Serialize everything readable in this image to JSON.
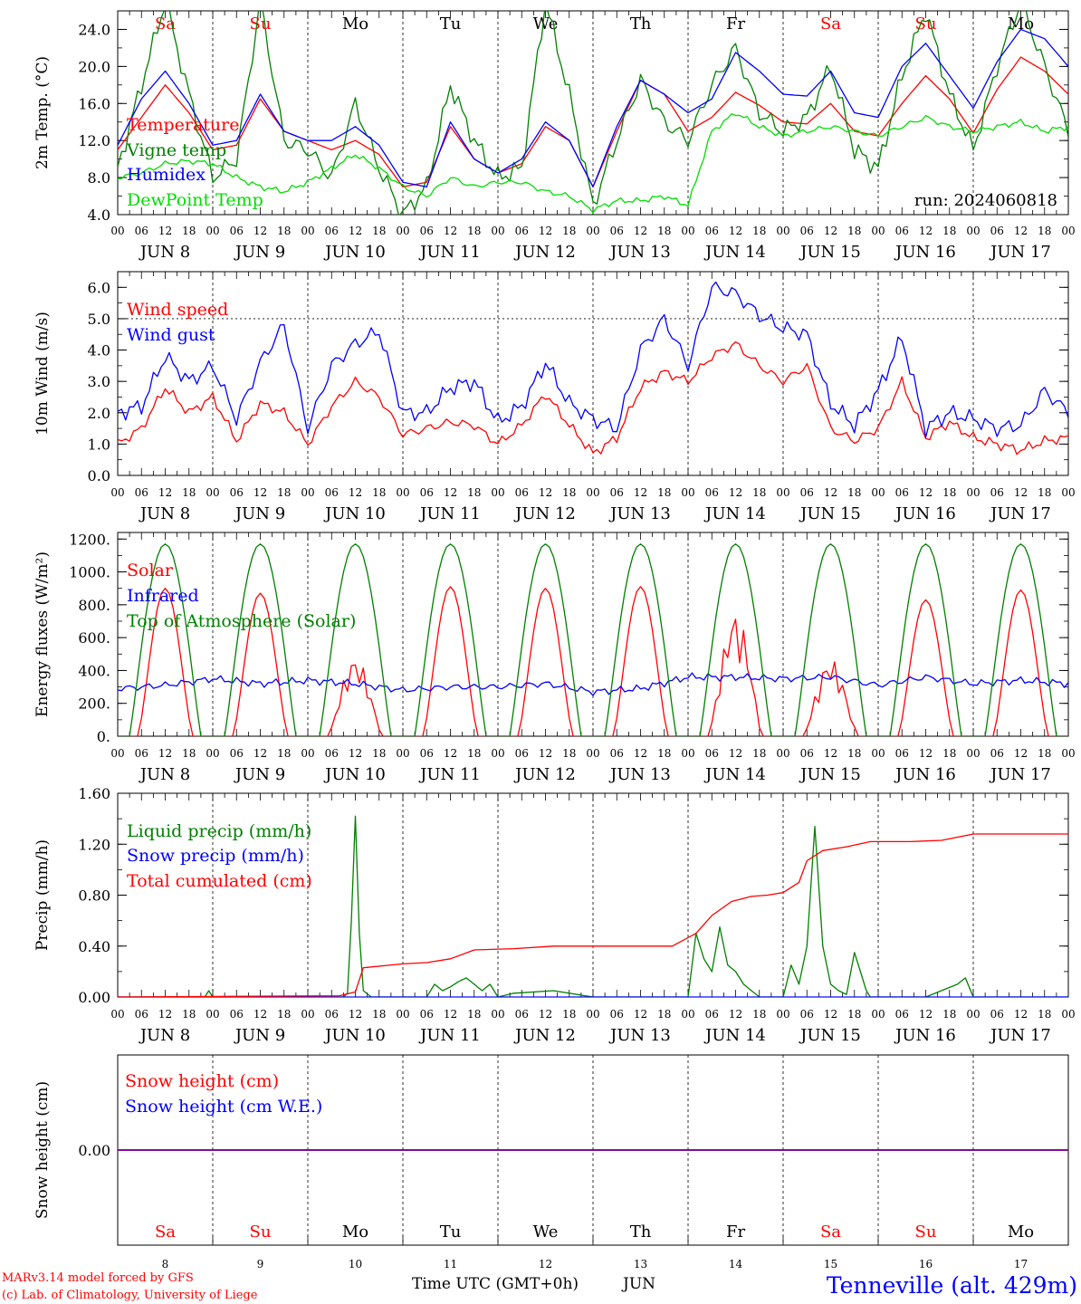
{
  "x_axis": {
    "hour_labels": [
      "00",
      "06",
      "12",
      "18"
    ],
    "final_hour_label": "00",
    "days": [
      {
        "date": "JUN  8",
        "weekday": "Sa",
        "weekend": true,
        "day_number": "8"
      },
      {
        "date": "JUN  9",
        "weekday": "Su",
        "weekend": true,
        "day_number": "9"
      },
      {
        "date": "JUN 10",
        "weekday": "Mo",
        "weekend": false,
        "day_number": "10"
      },
      {
        "date": "JUN 11",
        "weekday": "Tu",
        "weekend": false,
        "day_number": "11"
      },
      {
        "date": "JUN 12",
        "weekday": "We",
        "weekend": false,
        "day_number": "12"
      },
      {
        "date": "JUN 13",
        "weekday": "Th",
        "weekend": false,
        "day_number": "13"
      },
      {
        "date": "JUN 14",
        "weekday": "Fr",
        "weekend": false,
        "day_number": "14"
      },
      {
        "date": "JUN 15",
        "weekday": "Sa",
        "weekend": true,
        "day_number": "15"
      },
      {
        "date": "JUN 16",
        "weekday": "Su",
        "weekend": true,
        "day_number": "16"
      },
      {
        "date": "JUN 17",
        "weekday": "Mo",
        "weekend": false,
        "day_number": "17"
      }
    ],
    "title": "Time UTC (GMT+0h)",
    "month": "JUN"
  },
  "footer": {
    "credit_line1": "MARv3.14 model forced by GFS",
    "credit_line2": "(c) Lab. of Climatology, University of Liege",
    "station": "Tenneville (alt. 429m)"
  },
  "colors": {
    "red": "#ff0000",
    "blue": "#0000ff",
    "dark_green": "#008000",
    "light_green": "#00dd00",
    "purple": "#800080",
    "axis": "#000000"
  },
  "chart_data": [
    {
      "id": "temperature",
      "type": "line",
      "ylabel": "2m Temp. (°C)",
      "ylim": [
        4,
        26
      ],
      "yticks": [
        4,
        8,
        12,
        16,
        20,
        24
      ],
      "ytick_labels": [
        "4.0",
        "8.0",
        "12.0",
        "16.0",
        "20.0",
        "24.0"
      ],
      "annotation": "run: 2024060818",
      "x_hours": [
        0,
        6,
        12,
        18,
        24,
        30,
        36,
        42,
        48,
        54,
        60,
        66,
        72,
        78,
        84,
        90,
        96,
        102,
        108,
        114,
        120,
        126,
        132,
        138,
        144,
        150,
        156,
        162,
        168,
        174,
        180,
        186,
        192,
        198,
        204,
        210,
        216,
        222,
        228,
        234,
        240
      ],
      "series": [
        {
          "name": "Temperature",
          "color": "#ff0000",
          "values": [
            11.0,
            14.5,
            18.0,
            15.0,
            11.0,
            11.5,
            16.5,
            13.0,
            12.0,
            11.0,
            12.0,
            10.5,
            7.0,
            7.5,
            13.5,
            10.0,
            8.5,
            9.5,
            13.5,
            12.0,
            7.0,
            13.0,
            18.5,
            17.0,
            13.0,
            14.5,
            17.2,
            15.8,
            14.0,
            13.8,
            16.0,
            13.0,
            12.5,
            16.0,
            19.0,
            16.5,
            12.8,
            17.5,
            21.0,
            19.5,
            17.0
          ]
        },
        {
          "name": "Vigne temp",
          "color": "#008000",
          "values": [
            9.0,
            18.0,
            27.0,
            17.0,
            8.0,
            10.0,
            27.0,
            12.0,
            11.0,
            8.0,
            16.0,
            9.0,
            4.0,
            7.0,
            18.0,
            12.0,
            8.0,
            9.0,
            27.0,
            17.0,
            5.0,
            12.0,
            18.5,
            14.0,
            12.0,
            18.0,
            22.0,
            15.0,
            13.0,
            14.5,
            20.0,
            11.0,
            9.0,
            19.0,
            26.0,
            17.0,
            11.0,
            20.0,
            27.0,
            20.0,
            13.0
          ]
        },
        {
          "name": "Humidex",
          "color": "#0000ff",
          "values": [
            11.5,
            16.5,
            19.5,
            16.0,
            11.5,
            12.0,
            17.0,
            13.0,
            12.0,
            12.0,
            13.5,
            11.5,
            7.5,
            7.0,
            14.0,
            10.0,
            8.5,
            10.0,
            14.0,
            12.0,
            7.0,
            13.5,
            18.5,
            17.0,
            15.0,
            16.5,
            21.5,
            19.5,
            17.0,
            16.8,
            19.5,
            15.0,
            14.5,
            20.0,
            22.5,
            19.0,
            15.5,
            20.5,
            24.0,
            23.0,
            20.0
          ]
        },
        {
          "name": "DewPoint Temp",
          "color": "#00dd00",
          "values": [
            8.0,
            8.5,
            9.5,
            9.8,
            9.5,
            8.0,
            7.0,
            6.5,
            7.5,
            9.0,
            10.5,
            9.0,
            7.0,
            6.0,
            8.0,
            7.0,
            7.5,
            7.5,
            6.5,
            6.0,
            4.5,
            5.5,
            5.5,
            6.0,
            5.0,
            13.0,
            15.0,
            13.5,
            12.5,
            13.0,
            13.5,
            13.0,
            12.5,
            13.5,
            14.5,
            13.5,
            13.0,
            13.5,
            14.0,
            13.0,
            13.5
          ]
        }
      ]
    },
    {
      "id": "wind",
      "type": "line",
      "ylabel": "10m Wind (m/s)",
      "ylim": [
        0,
        6.5
      ],
      "yticks": [
        0,
        1,
        2,
        3,
        4,
        5,
        6
      ],
      "ytick_labels": [
        "0.0",
        "1.0",
        "2.0",
        "3.0",
        "4.0",
        "5.0",
        "6.0"
      ],
      "reference_line": 5.0,
      "x_hours": [
        0,
        6,
        12,
        18,
        24,
        30,
        36,
        42,
        48,
        54,
        60,
        66,
        72,
        78,
        84,
        90,
        96,
        102,
        108,
        114,
        120,
        126,
        132,
        138,
        144,
        150,
        156,
        162,
        168,
        174,
        180,
        186,
        192,
        198,
        204,
        210,
        216,
        222,
        228,
        234,
        240
      ],
      "series": [
        {
          "name": "Wind speed",
          "color": "#ff0000",
          "values": [
            1.0,
            1.5,
            2.8,
            2.0,
            2.5,
            1.1,
            2.3,
            2.0,
            1.0,
            2.2,
            3.0,
            2.5,
            1.3,
            1.5,
            1.7,
            1.6,
            1.0,
            1.6,
            2.6,
            1.6,
            0.7,
            1.2,
            2.8,
            3.3,
            3.0,
            3.8,
            4.2,
            3.5,
            3.0,
            3.5,
            1.5,
            1.1,
            1.5,
            3.0,
            1.2,
            1.7,
            1.2,
            1.0,
            0.8,
            1.1,
            1.2
          ]
        },
        {
          "name": "Wind gust",
          "color": "#0000ff",
          "values": [
            2.0,
            2.2,
            3.8,
            3.0,
            3.5,
            1.8,
            3.6,
            4.8,
            1.5,
            3.5,
            4.2,
            4.6,
            2.0,
            2.0,
            2.8,
            3.0,
            1.7,
            2.2,
            3.6,
            2.3,
            1.8,
            1.5,
            4.0,
            5.0,
            3.5,
            6.0,
            5.8,
            5.1,
            4.7,
            4.5,
            2.3,
            1.6,
            2.7,
            4.4,
            1.5,
            2.0,
            1.8,
            1.5,
            1.6,
            2.7,
            2.0
          ]
        }
      ]
    },
    {
      "id": "energy",
      "type": "line",
      "ylabel": "Energy fluxes (W/m²)",
      "ylim": [
        0,
        1240
      ],
      "yticks": [
        0,
        200,
        400,
        600,
        800,
        1000,
        1200
      ],
      "ytick_labels": [
        "0.",
        "200.",
        "400.",
        "600.",
        "800.",
        "1000.",
        "1200."
      ],
      "series": [
        {
          "name": "Solar",
          "color": "#ff0000",
          "daily_peaks": [
            900,
            870,
            480,
            910,
            900,
            910,
            750,
            470,
            830,
            890
          ]
        },
        {
          "name": "Infrared",
          "color": "#0000ff",
          "x_hours": [
            0,
            12,
            24,
            36,
            48,
            60,
            72,
            84,
            96,
            108,
            120,
            132,
            144,
            156,
            168,
            180,
            192,
            204,
            216,
            228,
            240
          ],
          "values": [
            290,
            310,
            350,
            320,
            340,
            320,
            280,
            300,
            300,
            320,
            270,
            290,
            360,
            360,
            350,
            360,
            310,
            360,
            320,
            340,
            320
          ]
        },
        {
          "name": "Top of Atmosphere (Solar)",
          "color": "#008000",
          "daily_peaks": [
            1170,
            1170,
            1170,
            1170,
            1170,
            1170,
            1170,
            1170,
            1170,
            1170
          ]
        }
      ]
    },
    {
      "id": "precip",
      "type": "line",
      "ylabel": "Precip (mm/h)",
      "ylim": [
        0,
        1.6
      ],
      "yticks": [
        0,
        0.4,
        0.8,
        1.2,
        1.6
      ],
      "ytick_labels": [
        "0.00",
        "0.40",
        "0.80",
        "1.20",
        "1.60"
      ],
      "series": [
        {
          "name": "Liquid precip (mm/h)",
          "color": "#008000",
          "x_hours": [
            0,
            22,
            23,
            24,
            57,
            58,
            59,
            60,
            61,
            62,
            64,
            70,
            78,
            80,
            82,
            84,
            86,
            88,
            90,
            92,
            94,
            96,
            100,
            110,
            120,
            144,
            146,
            148,
            150,
            152,
            154,
            156,
            158,
            160,
            162,
            168,
            170,
            172,
            174,
            176,
            178,
            180,
            182,
            184,
            186,
            189,
            190,
            198,
            204,
            212,
            214,
            216,
            240
          ],
          "values": [
            0,
            0,
            0.05,
            0,
            0,
            0.03,
            0.6,
            1.42,
            0.5,
            0.05,
            0,
            0,
            0,
            0.1,
            0.05,
            0.08,
            0.12,
            0.15,
            0.1,
            0.05,
            0.1,
            0,
            0.03,
            0.05,
            0,
            0,
            0.5,
            0.3,
            0.2,
            0.55,
            0.25,
            0.2,
            0.1,
            0.05,
            0,
            0,
            0.25,
            0.1,
            0.4,
            1.34,
            0.4,
            0.1,
            0.05,
            0.02,
            0.35,
            0.05,
            0,
            0,
            0,
            0.1,
            0.15,
            0,
            0
          ]
        },
        {
          "name": "Snow precip (mm/h)",
          "color": "#0000ff",
          "x_hours": [
            0,
            240
          ],
          "values": [
            0,
            0
          ]
        },
        {
          "name": "Total cumulated (cm)",
          "color": "#ff0000",
          "x_hours": [
            0,
            56,
            60,
            62,
            72,
            78,
            84,
            90,
            100,
            110,
            120,
            140,
            146,
            150,
            155,
            160,
            164,
            168,
            172,
            174,
            178,
            184,
            190,
            200,
            208,
            216,
            240
          ],
          "values": [
            0,
            0.01,
            0.04,
            0.23,
            0.26,
            0.27,
            0.3,
            0.37,
            0.38,
            0.4,
            0.4,
            0.4,
            0.5,
            0.64,
            0.75,
            0.79,
            0.8,
            0.82,
            0.9,
            1.07,
            1.15,
            1.18,
            1.22,
            1.22,
            1.23,
            1.28,
            1.28
          ]
        }
      ]
    },
    {
      "id": "snow",
      "type": "line",
      "ylabel": "Snow height (cm)",
      "ylim": [
        -1,
        1
      ],
      "yticks": [
        0
      ],
      "ytick_labels": [
        "0.00"
      ],
      "series": [
        {
          "name": "Snow height (cm)",
          "color": "#ff0000",
          "x_hours": [
            0,
            240
          ],
          "values": [
            0,
            0
          ]
        },
        {
          "name": "Snow height (cm W.E.)",
          "color": "#0000ff",
          "x_hours": [
            0,
            240
          ],
          "values": [
            0,
            0
          ]
        }
      ]
    }
  ]
}
